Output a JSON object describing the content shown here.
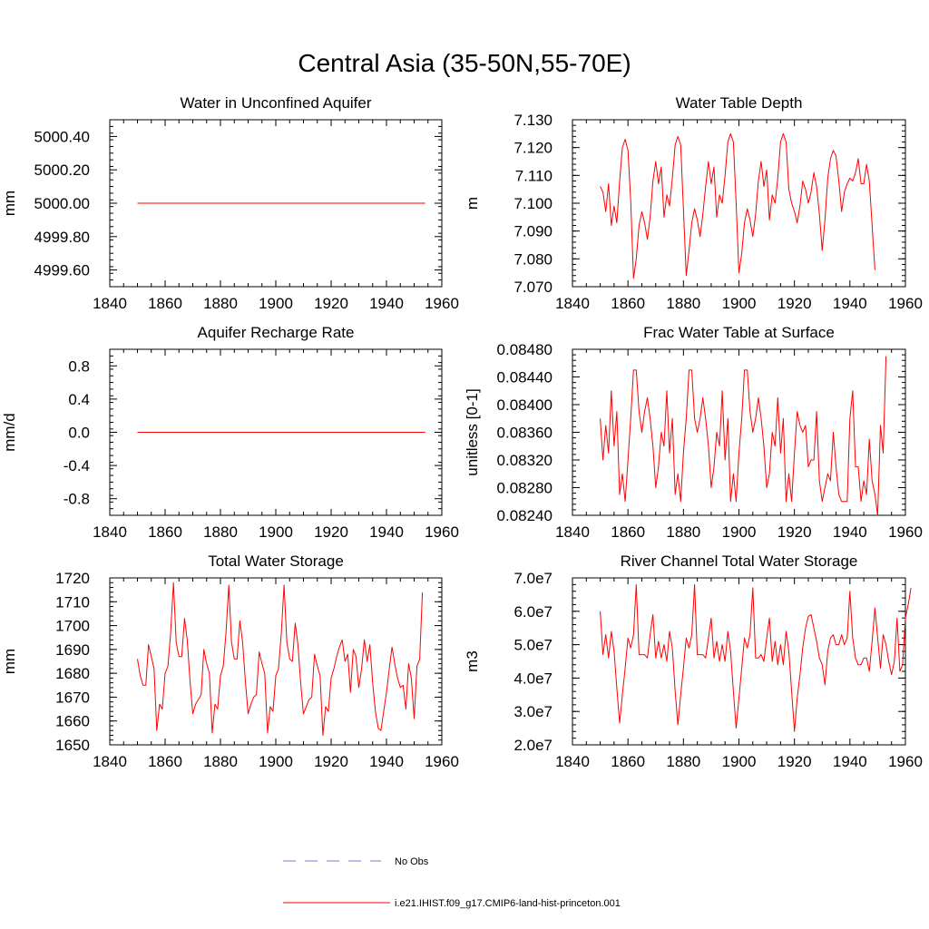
{
  "title": "Central Asia (35-50N,55-70E)",
  "legend": [
    {
      "label": "No Obs",
      "color": "#7777cc",
      "style": "dashed"
    },
    {
      "label": "i.e21.IHIST.f09_g17.CMIP6-land-hist-princeton.001",
      "color": "#ff0000",
      "style": "solid"
    }
  ],
  "chart_data": [
    {
      "type": "line",
      "title": "Water in Unconfined Aquifer",
      "xlabel": "",
      "ylabel": "mm",
      "xlim": [
        1840,
        1960
      ],
      "ylim": [
        4999.5,
        5000.5
      ],
      "xticks": [
        1840,
        1860,
        1880,
        1900,
        1920,
        1940,
        1960
      ],
      "yticks": [
        4999.6,
        4999.8,
        5000.0,
        5000.2,
        5000.4
      ],
      "ytick_labels": [
        "4999.60",
        "4999.80",
        "5000.00",
        "5000.20",
        "5000.40"
      ],
      "series": [
        {
          "color": "#ff0000",
          "x_start": 1850,
          "x_end": 1954,
          "constant": 5000.0
        }
      ]
    },
    {
      "type": "line",
      "title": "Water Table Depth",
      "xlabel": "",
      "ylabel": "m",
      "xlim": [
        1840,
        1960
      ],
      "ylim": [
        7.07,
        7.13
      ],
      "xticks": [
        1840,
        1860,
        1880,
        1900,
        1920,
        1940,
        1960
      ],
      "yticks": [
        7.07,
        7.08,
        7.09,
        7.1,
        7.11,
        7.12,
        7.13
      ],
      "ytick_labels": [
        "7.070",
        "7.080",
        "7.090",
        "7.100",
        "7.110",
        "7.120",
        "7.130"
      ],
      "series": [
        {
          "color": "#ff0000",
          "x_start": 1850,
          "values": [
            7.106,
            7.104,
            7.097,
            7.107,
            7.092,
            7.099,
            7.093,
            7.108,
            7.12,
            7.123,
            7.119,
            7.101,
            7.073,
            7.08,
            7.092,
            7.097,
            7.093,
            7.087,
            7.095,
            7.108,
            7.115,
            7.107,
            7.113,
            7.095,
            7.103,
            7.099,
            7.109,
            7.121,
            7.124,
            7.121,
            7.098,
            7.074,
            7.083,
            7.093,
            7.098,
            7.094,
            7.088,
            7.096,
            7.106,
            7.115,
            7.107,
            7.113,
            7.095,
            7.103,
            7.1,
            7.11,
            7.122,
            7.125,
            7.122,
            7.1,
            7.075,
            7.082,
            7.093,
            7.098,
            7.094,
            7.088,
            7.096,
            7.108,
            7.115,
            7.106,
            7.112,
            7.094,
            7.103,
            7.1,
            7.109,
            7.122,
            7.125,
            7.122,
            7.105,
            7.1,
            7.097,
            7.093,
            7.099,
            7.108,
            7.105,
            7.1,
            7.104,
            7.111,
            7.106,
            7.096,
            7.083,
            7.094,
            7.109,
            7.116,
            7.119,
            7.117,
            7.108,
            7.097,
            7.104,
            7.107,
            7.109,
            7.108,
            7.111,
            7.116,
            7.107,
            7.107,
            7.114,
            7.108,
            7.092,
            7.076
          ]
        }
      ]
    },
    {
      "type": "line",
      "title": "Aquifer Recharge Rate",
      "xlabel": "",
      "ylabel": "mm/d",
      "xlim": [
        1840,
        1960
      ],
      "ylim": [
        -1.0,
        1.0
      ],
      "xticks": [
        1840,
        1860,
        1880,
        1900,
        1920,
        1940,
        1960
      ],
      "yticks": [
        -0.8,
        -0.4,
        0.0,
        0.4,
        0.8
      ],
      "ytick_labels": [
        "-0.8",
        "-0.4",
        "0.0",
        "0.4",
        "0.8"
      ],
      "series": [
        {
          "color": "#ff0000",
          "x_start": 1850,
          "x_end": 1954,
          "constant": 0.0
        }
      ]
    },
    {
      "type": "line",
      "title": "Frac Water Table at Surface",
      "xlabel": "",
      "ylabel": "unitless [0-1]",
      "xlim": [
        1840,
        1960
      ],
      "ylim": [
        0.0824,
        0.0848
      ],
      "xticks": [
        1840,
        1860,
        1880,
        1900,
        1920,
        1940,
        1960
      ],
      "yticks": [
        0.0824,
        0.0828,
        0.0832,
        0.0836,
        0.084,
        0.0844,
        0.0848
      ],
      "ytick_labels": [
        "0.08240",
        "0.08280",
        "0.08320",
        "0.08360",
        "0.08400",
        "0.08440",
        "0.08480"
      ],
      "series": [
        {
          "color": "#ff0000",
          "x_start": 1850,
          "values": [
            0.0838,
            0.0832,
            0.0837,
            0.0833,
            0.0842,
            0.0834,
            0.0839,
            0.0827,
            0.083,
            0.0826,
            0.0832,
            0.0838,
            0.0845,
            0.0845,
            0.0839,
            0.0836,
            0.0839,
            0.0841,
            0.0838,
            0.0834,
            0.0828,
            0.0831,
            0.0836,
            0.0834,
            0.0842,
            0.0833,
            0.0838,
            0.0827,
            0.083,
            0.0826,
            0.0833,
            0.0838,
            0.0845,
            0.0845,
            0.0838,
            0.0836,
            0.0838,
            0.0841,
            0.0838,
            0.0834,
            0.0828,
            0.0831,
            0.0836,
            0.0834,
            0.0842,
            0.0832,
            0.0838,
            0.0826,
            0.083,
            0.0826,
            0.0833,
            0.0838,
            0.0845,
            0.0845,
            0.0839,
            0.0836,
            0.0838,
            0.0841,
            0.0838,
            0.0834,
            0.0828,
            0.083,
            0.0836,
            0.0834,
            0.0841,
            0.0833,
            0.0838,
            0.0826,
            0.083,
            0.0826,
            0.0833,
            0.0839,
            0.0837,
            0.0836,
            0.0837,
            0.0831,
            0.0832,
            0.0832,
            0.0839,
            0.0829,
            0.0826,
            0.0828,
            0.083,
            0.0829,
            0.0836,
            0.0831,
            0.0827,
            0.0826,
            0.0826,
            0.0826,
            0.0838,
            0.0842,
            0.0831,
            0.0831,
            0.0826,
            0.0829,
            0.0827,
            0.0835,
            0.0829,
            0.0827,
            0.0824,
            0.0837,
            0.0833,
            0.0847
          ]
        }
      ]
    },
    {
      "type": "line",
      "title": "Total Water Storage",
      "xlabel": "",
      "ylabel": "mm",
      "xlim": [
        1840,
        1960
      ],
      "ylim": [
        1650,
        1720
      ],
      "xticks": [
        1840,
        1860,
        1880,
        1900,
        1920,
        1940,
        1960
      ],
      "yticks": [
        1650,
        1660,
        1670,
        1680,
        1690,
        1700,
        1710,
        1720
      ],
      "ytick_labels": [
        "1650",
        "1660",
        "1670",
        "1680",
        "1690",
        "1700",
        "1710",
        "1720"
      ],
      "series": [
        {
          "color": "#ff0000",
          "x_start": 1850,
          "values": [
            1686,
            1679,
            1675,
            1675,
            1692,
            1687,
            1682,
            1656,
            1667,
            1665,
            1680,
            1683,
            1697,
            1718,
            1693,
            1687,
            1687,
            1703,
            1694,
            1677,
            1663,
            1667,
            1669,
            1671,
            1690,
            1684,
            1680,
            1655,
            1667,
            1665,
            1679,
            1683,
            1697,
            1717,
            1693,
            1686,
            1686,
            1702,
            1693,
            1677,
            1663,
            1667,
            1670,
            1671,
            1689,
            1684,
            1680,
            1655,
            1666,
            1664,
            1679,
            1682,
            1697,
            1717,
            1693,
            1686,
            1685,
            1701,
            1692,
            1676,
            1663,
            1666,
            1669,
            1670,
            1688,
            1683,
            1679,
            1654,
            1666,
            1664,
            1678,
            1682,
            1687,
            1691,
            1694,
            1685,
            1688,
            1672,
            1690,
            1687,
            1674,
            1682,
            1694,
            1685,
            1692,
            1676,
            1664,
            1657,
            1656,
            1664,
            1672,
            1682,
            1691,
            1684,
            1678,
            1674,
            1675,
            1665,
            1684,
            1678,
            1661,
            1683,
            1686,
            1714
          ]
        }
      ]
    },
    {
      "type": "line",
      "title": "River Channel Total Water Storage",
      "xlabel": "",
      "ylabel": "m3",
      "xlim": [
        1840,
        1960
      ],
      "ylim": [
        20000000,
        70000000
      ],
      "xticks": [
        1840,
        1860,
        1880,
        1900,
        1920,
        1940,
        1960
      ],
      "yticks": [
        20000000,
        30000000,
        40000000,
        50000000,
        60000000,
        70000000
      ],
      "ytick_labels": [
        "2.0e7",
        "3.0e7",
        "4.0e7",
        "5.0e7",
        "6.0e7",
        "7.0e7"
      ],
      "series": [
        {
          "color": "#ff0000",
          "x_start": 1850,
          "values": [
            60000000,
            47000000,
            53000000,
            46000000,
            54000000,
            48000000,
            37000000,
            26500000,
            35000000,
            43000000,
            52000000,
            49000000,
            53000000,
            68000000,
            47000000,
            47000000,
            47000000,
            46000000,
            53000000,
            59000000,
            46000000,
            51000000,
            46000000,
            50000000,
            45000000,
            54000000,
            49000000,
            36000000,
            26000000,
            35000000,
            43000000,
            52000000,
            49000000,
            53000000,
            68000000,
            47000000,
            47000000,
            47000000,
            46000000,
            52000000,
            58000000,
            46000000,
            51000000,
            45000000,
            50000000,
            45000000,
            54000000,
            48000000,
            36000000,
            25000000,
            34000000,
            43000000,
            52000000,
            49000000,
            53000000,
            67000000,
            46000000,
            46000000,
            47000000,
            45000000,
            52000000,
            58000000,
            45000000,
            51000000,
            44000000,
            50000000,
            44000000,
            54000000,
            48000000,
            36000000,
            24000000,
            34000000,
            41000000,
            49000000,
            55000000,
            58500000,
            59000000,
            55000000,
            51000000,
            46000000,
            44000000,
            38000000,
            48000000,
            52000000,
            53000000,
            50000000,
            50000000,
            53000000,
            50000000,
            52000000,
            66000000,
            52000000,
            46000000,
            44000000,
            44000000,
            46000000,
            46000000,
            42000000,
            51000000,
            61000000,
            52000000,
            43000000,
            53000000,
            50000000,
            45000000,
            41000000,
            45000000,
            58000000,
            42000000,
            44000000,
            58000000,
            62000000,
            67000000
          ]
        }
      ]
    }
  ]
}
